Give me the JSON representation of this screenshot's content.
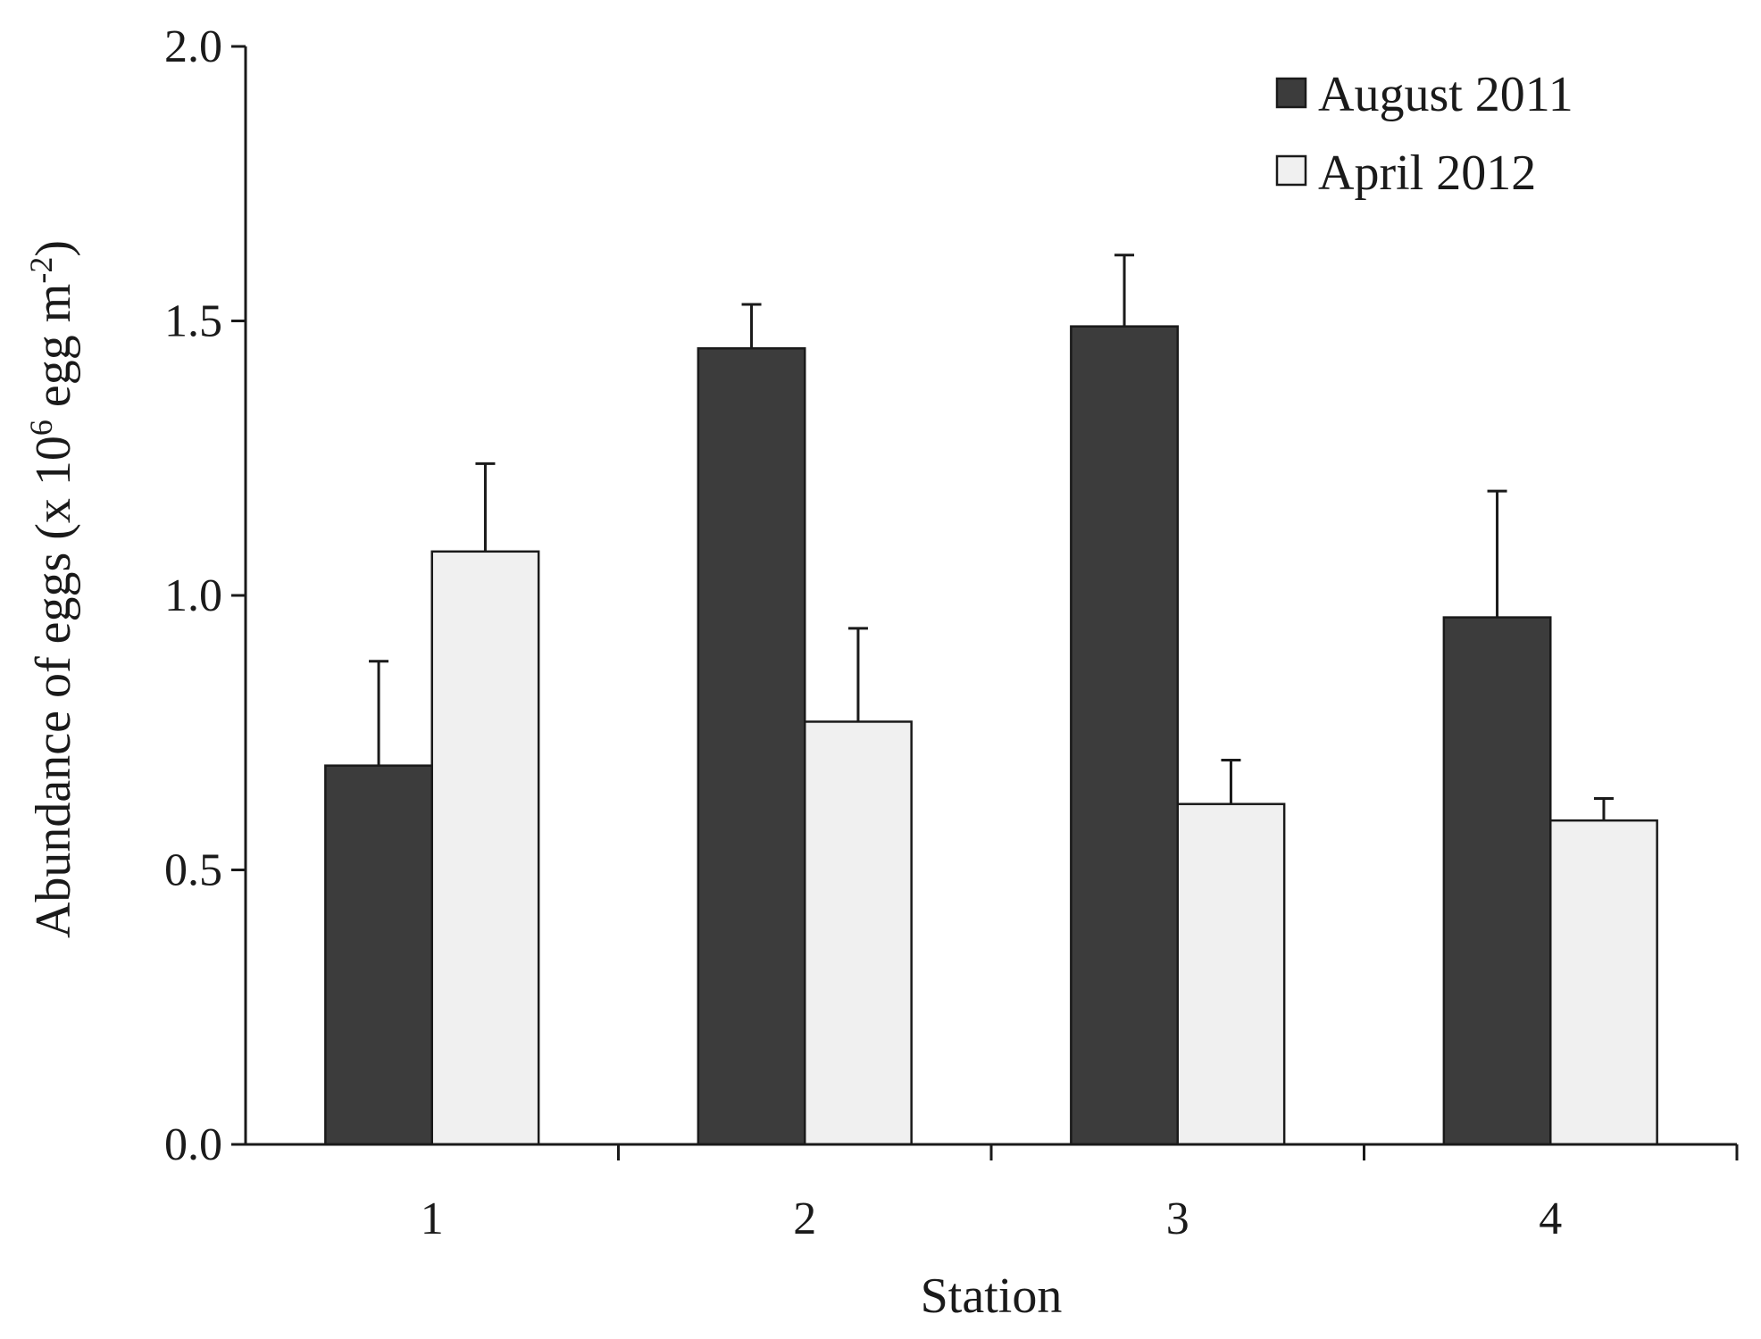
{
  "chart_data": {
    "type": "bar",
    "xlabel": "Station",
    "ylabel_main": "Abundance of eggs (x 10",
    "ylabel_sup1": "6",
    "ylabel_mid": " egg m",
    "ylabel_sup2": "-2",
    "ylabel_end": ")",
    "ylim": [
      0,
      2.0
    ],
    "yticks": [
      "0.0",
      "0.5",
      "1.0",
      "1.5",
      "2.0"
    ],
    "ytick_values": [
      0,
      0.5,
      1.0,
      1.5,
      2.0
    ],
    "categories": [
      "1",
      "2",
      "3",
      "4"
    ],
    "legend_position": "top-right",
    "grid": false,
    "series": [
      {
        "name": "August 2011",
        "color": "#3c3c3c",
        "values": [
          0.69,
          1.45,
          1.49,
          0.96
        ],
        "errors": [
          0.19,
          0.08,
          0.13,
          0.23
        ]
      },
      {
        "name": "April 2012",
        "color": "#f0f0f0",
        "values": [
          1.08,
          0.77,
          0.62,
          0.59
        ],
        "errors": [
          0.16,
          0.17,
          0.08,
          0.04
        ]
      }
    ]
  }
}
